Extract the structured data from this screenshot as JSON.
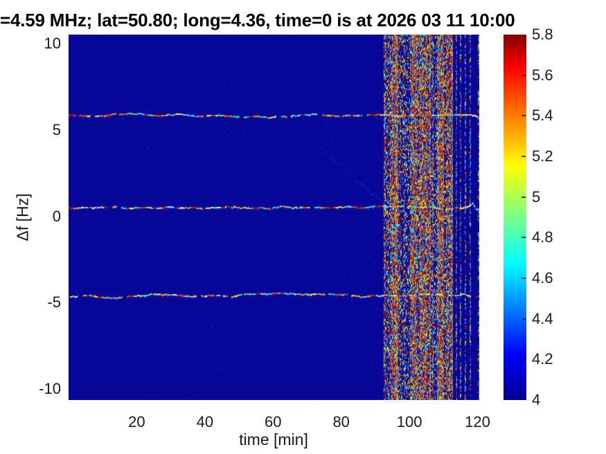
{
  "figure_title": "=4.59 MHz;  lat=50.80; long=4.36, time=0 is at 2026 03 11 10:00",
  "chart_data": {
    "type": "heatmap",
    "subtype": "doppler-spectrogram",
    "title": "=4.59 MHz;  lat=50.80; long=4.36, time=0 is at 2026 03 11 10:00",
    "xlabel": "time [min]",
    "ylabel": "Δf [Hz]",
    "xlim": [
      0,
      120.5
    ],
    "ylim": [
      -10.7,
      10.5
    ],
    "xtick_values": [
      20,
      40,
      60,
      80,
      100,
      120
    ],
    "xtick_labels": [
      "20",
      "40",
      "60",
      "80",
      "100",
      "120"
    ],
    "ytick_values": [
      10,
      5,
      0,
      -5,
      -10
    ],
    "ytick_labels": [
      "10",
      "5",
      "0",
      "-5",
      "-10"
    ],
    "colorbar": {
      "colormap": "jet",
      "clim": [
        4,
        5.8
      ],
      "tick_values": [
        4,
        4.2,
        4.4,
        4.6,
        4.8,
        5,
        5.2,
        5.4,
        5.6,
        5.8
      ],
      "tick_labels": [
        "4",
        "4.2",
        "4.4",
        "4.6",
        "4.8",
        "5",
        "5.2",
        "5.4",
        "5.6",
        "5.8"
      ],
      "gradient_stops": [
        {
          "pos": 0.0,
          "color": "#000092"
        },
        {
          "pos": 0.125,
          "color": "#0000ff"
        },
        {
          "pos": 0.375,
          "color": "#00ffff"
        },
        {
          "pos": 0.64,
          "color": "#ffff00"
        },
        {
          "pos": 0.91,
          "color": "#ff0000"
        },
        {
          "pos": 1.0,
          "color": "#850000"
        }
      ]
    },
    "background_value": 4.0,
    "background_color": "#060699",
    "traces": [
      {
        "name": "upper-doppler-trace",
        "mean_hz": 5.8,
        "points": [
          [
            0,
            5.8
          ],
          [
            8,
            5.75
          ],
          [
            14,
            5.85
          ],
          [
            20,
            5.9
          ],
          [
            26,
            5.78
          ],
          [
            32,
            5.85
          ],
          [
            38,
            5.75
          ],
          [
            44,
            5.82
          ],
          [
            50,
            5.72
          ],
          [
            56,
            5.8
          ],
          [
            60,
            5.68
          ],
          [
            66,
            5.78
          ],
          [
            72,
            5.85
          ],
          [
            78,
            5.76
          ],
          [
            84,
            5.82
          ],
          [
            90,
            5.85
          ],
          [
            96,
            5.8
          ],
          [
            102,
            5.85
          ],
          [
            108,
            5.8
          ],
          [
            114,
            5.83
          ],
          [
            118,
            5.86
          ],
          [
            120.5,
            5.75
          ]
        ]
      },
      {
        "name": "center-doppler-trace",
        "mean_hz": 0.45,
        "points": [
          [
            0,
            0.45
          ],
          [
            10,
            0.5
          ],
          [
            20,
            0.42
          ],
          [
            30,
            0.5
          ],
          [
            40,
            0.45
          ],
          [
            50,
            0.52
          ],
          [
            60,
            0.46
          ],
          [
            70,
            0.5
          ],
          [
            80,
            0.44
          ],
          [
            90,
            0.5
          ],
          [
            100,
            0.5
          ],
          [
            110,
            0.45
          ],
          [
            117,
            0.5
          ],
          [
            118.6,
            0.72
          ],
          [
            119.6,
            0.3
          ],
          [
            120.5,
            0.38
          ]
        ]
      },
      {
        "name": "lower-doppler-trace",
        "mean_hz": -4.6,
        "points": [
          [
            0,
            -4.75
          ],
          [
            6,
            -4.6
          ],
          [
            12,
            -4.8
          ],
          [
            18,
            -4.68
          ],
          [
            24,
            -4.58
          ],
          [
            30,
            -4.65
          ],
          [
            36,
            -4.72
          ],
          [
            42,
            -4.62
          ],
          [
            48,
            -4.72
          ],
          [
            52,
            -4.5
          ],
          [
            58,
            -4.56
          ],
          [
            62,
            -4.48
          ],
          [
            68,
            -4.58
          ],
          [
            74,
            -4.52
          ],
          [
            80,
            -4.6
          ],
          [
            86,
            -4.66
          ],
          [
            92,
            -4.6
          ],
          [
            98,
            -4.64
          ],
          [
            104,
            -4.58
          ],
          [
            110,
            -4.62
          ],
          [
            116,
            -4.6
          ],
          [
            119,
            -4.78
          ],
          [
            120.5,
            -4.72
          ]
        ]
      }
    ],
    "disturbance_band": {
      "t_start": 92.5,
      "t_end": 112.8,
      "description": "broadband interference: dense vertical multicolored stripes spanning all frequencies",
      "aftershock_columns": [
        113.6,
        114.9,
        116.3,
        117.6
      ],
      "edge_column_t": 120.1
    },
    "faint_diagonal": {
      "from": [
        74,
        3.9
      ],
      "to": [
        92.5,
        0.7
      ]
    },
    "noise_seed": 1337,
    "trace_weights": [
      0.2,
      0.1,
      0.05,
      0.17,
      0.2,
      0.18,
      0.1
    ],
    "palettes": {
      "hot": [
        "#8c0f00",
        "#b22000",
        "#d63c00",
        "#f06010",
        "#ff8c00"
      ],
      "mid": [
        "#ffd000",
        "#cfe24a",
        "#49e8c8"
      ],
      "cool": [
        "#0fc8e8",
        "#2a66ff",
        "#2233cc"
      ],
      "band_bg": [
        "#060699",
        "#0b0ba2",
        "#101090"
      ],
      "bg_speckle": [
        "#12129f",
        "#1a1aae",
        "#2547c9",
        "#2ea8d8"
      ],
      "trace": [
        "#35e0cf",
        "#8fd0ff",
        "#e8f8f0",
        "#ffe14a",
        "#ff9518",
        "#e6450f",
        "#b01c00"
      ]
    }
  }
}
